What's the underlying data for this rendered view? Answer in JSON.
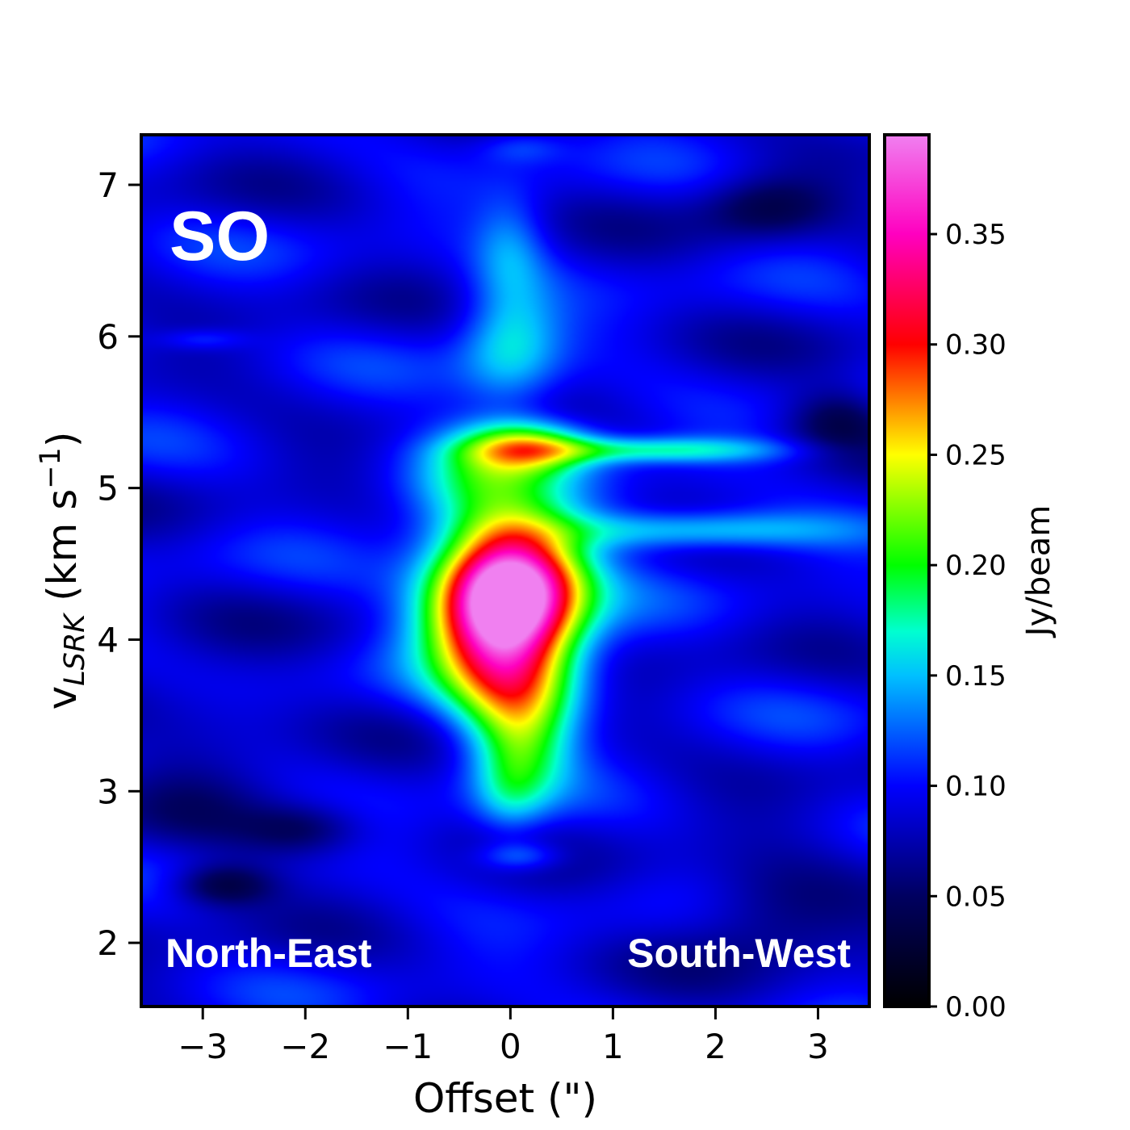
{
  "chart_data": {
    "type": "heatmap",
    "title": "",
    "panel_label": "SO",
    "annotations": {
      "left": "North-East",
      "right": "South-West"
    },
    "xlabel": "Offset (\")",
    "ylabel": {
      "main": "v",
      "sub": "LSRK",
      "unit_open": " (km s",
      "sup": "−1",
      "unit_close": ")"
    },
    "xlim": [
      -3.6,
      3.5
    ],
    "ylim": [
      1.58,
      7.33
    ],
    "xticks": [
      {
        "value": -3,
        "label": "−3"
      },
      {
        "value": -2,
        "label": "−2"
      },
      {
        "value": -1,
        "label": "−1"
      },
      {
        "value": 0,
        "label": "0"
      },
      {
        "value": 1,
        "label": "1"
      },
      {
        "value": 2,
        "label": "2"
      },
      {
        "value": 3,
        "label": "3"
      }
    ],
    "yticks": [
      {
        "value": 2,
        "label": "2"
      },
      {
        "value": 3,
        "label": "3"
      },
      {
        "value": 4,
        "label": "4"
      },
      {
        "value": 5,
        "label": "5"
      },
      {
        "value": 6,
        "label": "6"
      },
      {
        "value": 7,
        "label": "7"
      }
    ],
    "colorbar": {
      "label": "Jy/beam",
      "range": [
        0.0,
        0.395
      ],
      "ticks": [
        {
          "value": 0.0,
          "label": "0.00"
        },
        {
          "value": 0.05,
          "label": "0.05"
        },
        {
          "value": 0.1,
          "label": "0.10"
        },
        {
          "value": 0.15,
          "label": "0.15"
        },
        {
          "value": 0.2,
          "label": "0.20"
        },
        {
          "value": 0.25,
          "label": "0.25"
        },
        {
          "value": 0.3,
          "label": "0.30"
        },
        {
          "value": 0.35,
          "label": "0.35"
        }
      ],
      "colormap": [
        {
          "v": 0.0,
          "c": "#000000"
        },
        {
          "v": 0.05,
          "c": "#000060"
        },
        {
          "v": 0.1,
          "c": "#0000ff"
        },
        {
          "v": 0.15,
          "c": "#00c0ff"
        },
        {
          "v": 0.17,
          "c": "#00ffd0"
        },
        {
          "v": 0.2,
          "c": "#00ff00"
        },
        {
          "v": 0.25,
          "c": "#ffff00"
        },
        {
          "v": 0.275,
          "c": "#ff8000"
        },
        {
          "v": 0.3,
          "c": "#ff0000"
        },
        {
          "v": 0.35,
          "c": "#ff00c0"
        },
        {
          "v": 0.395,
          "c": "#f080f0"
        }
      ]
    },
    "background_level": 0.09,
    "emission_components": [
      {
        "x": 0.0,
        "y": 4.3,
        "sx": 0.45,
        "sy": 0.3,
        "amp": 0.3
      },
      {
        "x": -0.3,
        "y": 4.1,
        "sx": 0.5,
        "sy": 0.3,
        "amp": 0.08
      },
      {
        "x": 0.05,
        "y": 3.7,
        "sx": 0.45,
        "sy": 0.25,
        "amp": 0.12
      },
      {
        "x": 0.1,
        "y": 4.5,
        "sx": 0.65,
        "sy": 0.4,
        "amp": 0.05
      },
      {
        "x": 0.1,
        "y": 3.3,
        "sx": 0.35,
        "sy": 0.25,
        "amp": 0.09
      },
      {
        "x": 0.2,
        "y": 5.27,
        "sx": 0.45,
        "sy": 0.12,
        "amp": 0.13
      },
      {
        "x": 1.4,
        "y": 5.25,
        "sx": 0.9,
        "sy": 0.06,
        "amp": 0.08
      },
      {
        "x": 1.8,
        "y": 4.72,
        "sx": 1.0,
        "sy": 0.09,
        "amp": 0.08
      },
      {
        "x": -0.3,
        "y": 5.1,
        "sx": 0.5,
        "sy": 0.25,
        "amp": 0.06
      },
      {
        "x": 0.0,
        "y": 5.95,
        "sx": 0.35,
        "sy": 0.3,
        "amp": 0.07
      },
      {
        "x": 0.0,
        "y": 6.6,
        "sx": 0.25,
        "sy": 0.25,
        "amp": 0.04
      },
      {
        "x": 0.1,
        "y": 7.25,
        "sx": 0.3,
        "sy": 0.08,
        "amp": 0.03
      },
      {
        "x": 0.1,
        "y": 2.57,
        "sx": 0.3,
        "sy": 0.07,
        "amp": 0.05
      },
      {
        "x": 0.0,
        "y": 2.95,
        "sx": 0.25,
        "sy": 0.2,
        "amp": 0.04
      },
      {
        "x": -3.0,
        "y": 5.98,
        "sx": 0.3,
        "sy": 0.05,
        "amp": 0.03
      },
      {
        "x": -2.8,
        "y": 2.38,
        "sx": 0.35,
        "sy": 0.1,
        "amp": -0.06
      },
      {
        "x": 2.5,
        "y": 6.85,
        "sx": 0.45,
        "sy": 0.15,
        "amp": -0.05
      },
      {
        "x": 3.2,
        "y": 5.45,
        "sx": 0.35,
        "sy": 0.15,
        "amp": -0.05
      },
      {
        "x": -2.0,
        "y": 2.75,
        "sx": 0.4,
        "sy": 0.12,
        "amp": -0.04
      },
      {
        "x": 2.5,
        "y": 2.2,
        "sx": 0.6,
        "sy": 0.25,
        "amp": -0.04
      },
      {
        "x": -3.0,
        "y": 3.2,
        "sx": 0.6,
        "sy": 0.5,
        "amp": -0.02
      }
    ]
  }
}
